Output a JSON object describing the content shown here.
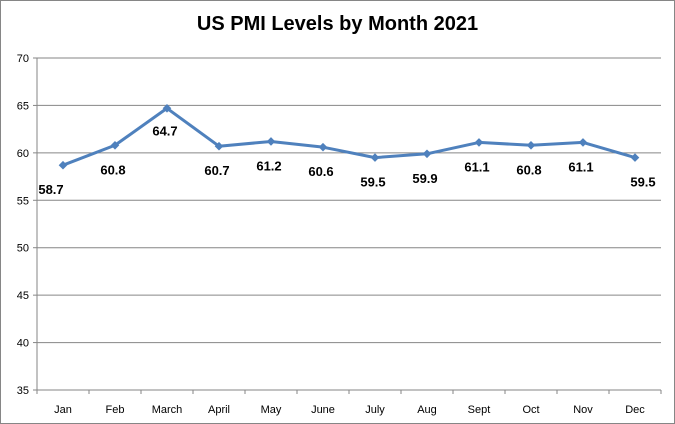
{
  "chart_data": {
    "type": "line",
    "title": "US PMI Levels by Month 2021",
    "xlabel": "",
    "ylabel": "",
    "categories": [
      "Jan",
      "Feb",
      "March",
      "April",
      "May",
      "June",
      "July",
      "Aug",
      "Sept",
      "Oct",
      "Nov",
      "Dec"
    ],
    "series": [
      {
        "values": [
          58.7,
          60.8,
          64.7,
          60.7,
          61.2,
          60.6,
          59.5,
          59.9,
          61.1,
          60.8,
          61.1,
          59.5
        ],
        "color": "#4F81BD"
      }
    ],
    "data_labels": [
      "58.7",
      "60.8",
      "64.7",
      "60.7",
      "61.2",
      "60.6",
      "59.5",
      "59.9",
      "61.1",
      "60.8",
      "61.1",
      "59.5"
    ],
    "ylim": [
      35,
      70
    ],
    "y_ticks": [
      35,
      40,
      45,
      50,
      55,
      60,
      65,
      70
    ],
    "grid": true,
    "legend": "none"
  }
}
